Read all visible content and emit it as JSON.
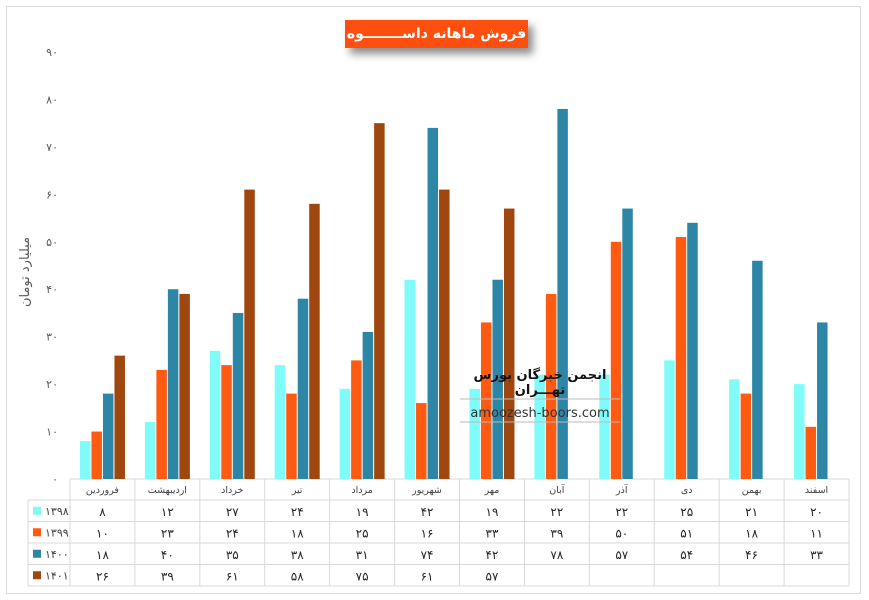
{
  "chart_data": {
    "type": "bar",
    "title": "فروش ماهانه داســــــــوه",
    "ylabel": "میلیارد تومان",
    "ylim": [
      0,
      90
    ],
    "yticks": [
      "۰",
      "۱۰",
      "۲۰",
      "۳۰",
      "۴۰",
      "۵۰",
      "۶۰",
      "۷۰",
      "۸۰",
      "۹۰"
    ],
    "categories": [
      "فروردین",
      "اردیبهشت",
      "خرداد",
      "تیر",
      "مرداد",
      "شهریور",
      "مهر",
      "آبان",
      "آذر",
      "دی",
      "بهمن",
      "اسفند"
    ],
    "series": [
      {
        "name": "۱۳۹۸",
        "color": "#7ffcfa",
        "values": [
          8,
          12,
          27,
          24,
          19,
          42,
          19,
          22,
          22,
          25,
          21,
          20
        ],
        "labels": [
          "۸",
          "۱۲",
          "۲۷",
          "۲۴",
          "۱۹",
          "۴۲",
          "۱۹",
          "۲۲",
          "۲۲",
          "۲۵",
          "۲۱",
          "۲۰"
        ]
      },
      {
        "name": "۱۳۹۹",
        "color": "#ff5a12",
        "values": [
          10,
          23,
          24,
          18,
          25,
          16,
          33,
          39,
          50,
          51,
          18,
          11
        ],
        "labels": [
          "۱۰",
          "۲۳",
          "۲۴",
          "۱۸",
          "۲۵",
          "۱۶",
          "۳۳",
          "۳۹",
          "۵۰",
          "۵۱",
          "۱۸",
          "۱۱"
        ]
      },
      {
        "name": "۱۴۰۰",
        "color": "#2e86a6",
        "values": [
          18,
          40,
          35,
          38,
          31,
          74,
          42,
          78,
          57,
          54,
          46,
          33
        ],
        "labels": [
          "۱۸",
          "۴۰",
          "۳۵",
          "۳۸",
          "۳۱",
          "۷۴",
          "۴۲",
          "۷۸",
          "۵۷",
          "۵۴",
          "۴۶",
          "۳۳"
        ]
      },
      {
        "name": "۱۴۰۱",
        "color": "#a0470f",
        "values": [
          26,
          39,
          61,
          58,
          75,
          61,
          57,
          null,
          null,
          null,
          null,
          null
        ],
        "labels": [
          "۲۶",
          "۳۹",
          "۶۱",
          "۵۸",
          "۷۵",
          "۶۱",
          "۵۷",
          "",
          "",
          "",
          "",
          ""
        ]
      }
    ],
    "legend": "data-table",
    "grid": false
  },
  "watermark": {
    "title": "انجمن خبرگان بورس تهـــران",
    "url": "amoozesh-boors.com"
  }
}
